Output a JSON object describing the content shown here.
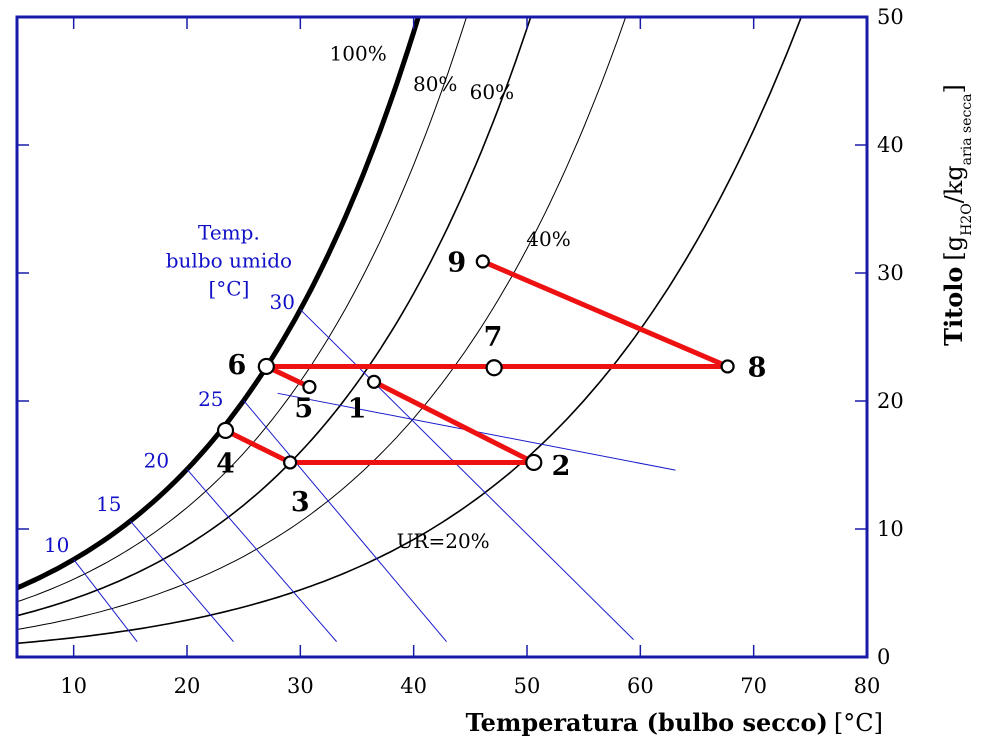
{
  "chart_data": {
    "type": "line",
    "title": "",
    "xlabel_bold": "Temperatura (bulbo secco)",
    "xlabel_unit": "[°C]",
    "ylabel_bold": "Titolo",
    "ylabel_unit_open": "[g",
    "ylabel_h2o_sub": "H2O",
    "ylabel_slash_kg": "/kg",
    "ylabel_dry_sub": "aria secca",
    "ylabel_close": "]",
    "xlim": [
      5,
      80
    ],
    "ylim": [
      0,
      50
    ],
    "x_ticks": [
      10,
      20,
      30,
      40,
      50,
      60,
      70,
      80
    ],
    "y_ticks": [
      0,
      10,
      20,
      30,
      40,
      50
    ],
    "grid": false,
    "frame_color": "#1a1aa8",
    "relative_humidity_curves": [
      {
        "rh": 1.0,
        "label": "100%",
        "label_x": 35.1,
        "label_y": 46.6
      },
      {
        "rh": 0.8,
        "label": "80%",
        "label_x": 41.9,
        "label_y": 44.2
      },
      {
        "rh": 0.6,
        "label": "60%",
        "label_x": 46.9,
        "label_y": 43.6
      },
      {
        "rh": 0.4,
        "label": "40%",
        "label_x": 51.9,
        "label_y": 32.1
      },
      {
        "rh": 0.2,
        "label": "UR=20%",
        "label_x": 42.6,
        "label_y": 8.5
      }
    ],
    "wet_bulb_lines": [
      {
        "t_wb": 10,
        "label": "10",
        "x_end": 15.6,
        "label_x": 8.5,
        "label_y": 8.2
      },
      {
        "t_wb": 15,
        "label": "15",
        "x_end": 24.1,
        "label_x": 13.1,
        "label_y": 11.4
      },
      {
        "t_wb": 20,
        "label": "20",
        "x_end": 33.2,
        "label_x": 17.3,
        "label_y": 14.8
      },
      {
        "t_wb": 25,
        "label": "25",
        "x_end": 42.9,
        "label_x": 22.1,
        "label_y": 19.6
      },
      {
        "t_wb": 30,
        "label": "30",
        "x_end": 59.4,
        "label_x": 28.4,
        "label_y": 27.2
      }
    ],
    "wet_bulb_extra_segments": [
      {
        "x1": 28.0,
        "y1": 20.6,
        "x2": 63.1,
        "y2": 14.6
      }
    ],
    "wet_bulb_title": [
      "Temp.",
      "bulbo umido",
      "[°C]"
    ],
    "wet_bulb_title_x": 23.7,
    "wet_bulb_title_y": 32.6,
    "process_color": "#ee1111",
    "points": [
      {
        "id": "1",
        "x": 36.5,
        "y": 21.5,
        "lx": 35.0,
        "ly": 18.7,
        "size": "small"
      },
      {
        "id": "2",
        "x": 50.6,
        "y": 15.2,
        "lx": 53.0,
        "ly": 14.2,
        "size": "large"
      },
      {
        "id": "3",
        "x": 29.1,
        "y": 15.2,
        "lx": 30.0,
        "ly": 11.4,
        "size": "small"
      },
      {
        "id": "4",
        "x": 23.4,
        "y": 17.7,
        "lx": 23.4,
        "ly": 14.4,
        "size": "large"
      },
      {
        "id": "5",
        "x": 30.8,
        "y": 21.1,
        "lx": 30.3,
        "ly": 18.7,
        "size": "small"
      },
      {
        "id": "6",
        "x": 27.0,
        "y": 22.7,
        "lx": 24.4,
        "ly": 22.1,
        "size": "large"
      },
      {
        "id": "7",
        "x": 47.1,
        "y": 22.6,
        "lx": 47.0,
        "ly": 24.3,
        "size": "large"
      },
      {
        "id": "8",
        "x": 67.7,
        "y": 22.7,
        "lx": 70.3,
        "ly": 21.9,
        "size": "small"
      },
      {
        "id": "9",
        "x": 46.1,
        "y": 30.9,
        "lx": 43.8,
        "ly": 30.1,
        "size": "small"
      }
    ],
    "segments": [
      [
        "9",
        "8"
      ],
      [
        "6",
        "8"
      ],
      [
        "6",
        "5"
      ],
      [
        "1",
        "2"
      ],
      [
        "4",
        "3"
      ],
      [
        "3",
        "2"
      ]
    ]
  }
}
